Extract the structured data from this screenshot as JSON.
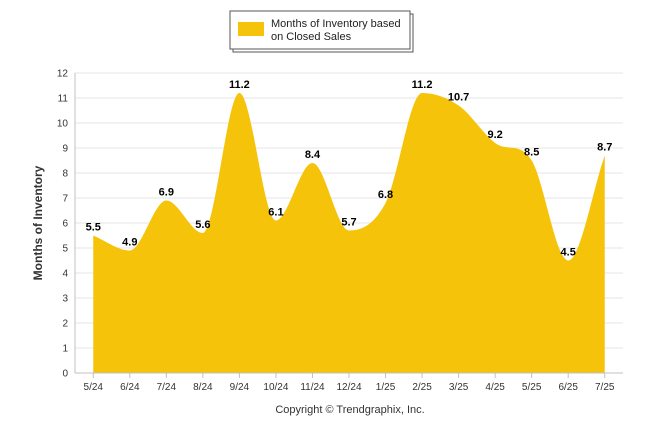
{
  "chart_data": {
    "type": "area",
    "categories": [
      "5/24",
      "6/24",
      "7/24",
      "8/24",
      "9/24",
      "10/24",
      "11/24",
      "12/24",
      "1/25",
      "2/25",
      "3/25",
      "4/25",
      "5/25",
      "6/25",
      "7/25"
    ],
    "series": [
      {
        "name": "Months of Inventory based on Closed Sales",
        "values": [
          5.5,
          4.9,
          6.9,
          5.6,
          11.2,
          6.1,
          8.4,
          5.7,
          6.8,
          11.2,
          10.7,
          9.2,
          8.5,
          4.5,
          8.7
        ]
      }
    ],
    "legend_lines": [
      "Months of Inventory based",
      "on Closed Sales"
    ],
    "ylabel": "Months of Inventory",
    "ylim": [
      0,
      12
    ],
    "yticks": [
      0,
      1,
      2,
      3,
      4,
      5,
      6,
      7,
      8,
      9,
      10,
      11,
      12
    ],
    "grid": true,
    "legend_position": "top-center",
    "credit": "Copyright © Trendgraphix, Inc.",
    "colors": {
      "area": "#f5c30a",
      "grid": "#e6e6e6",
      "axis": "#c0c0c0"
    }
  }
}
